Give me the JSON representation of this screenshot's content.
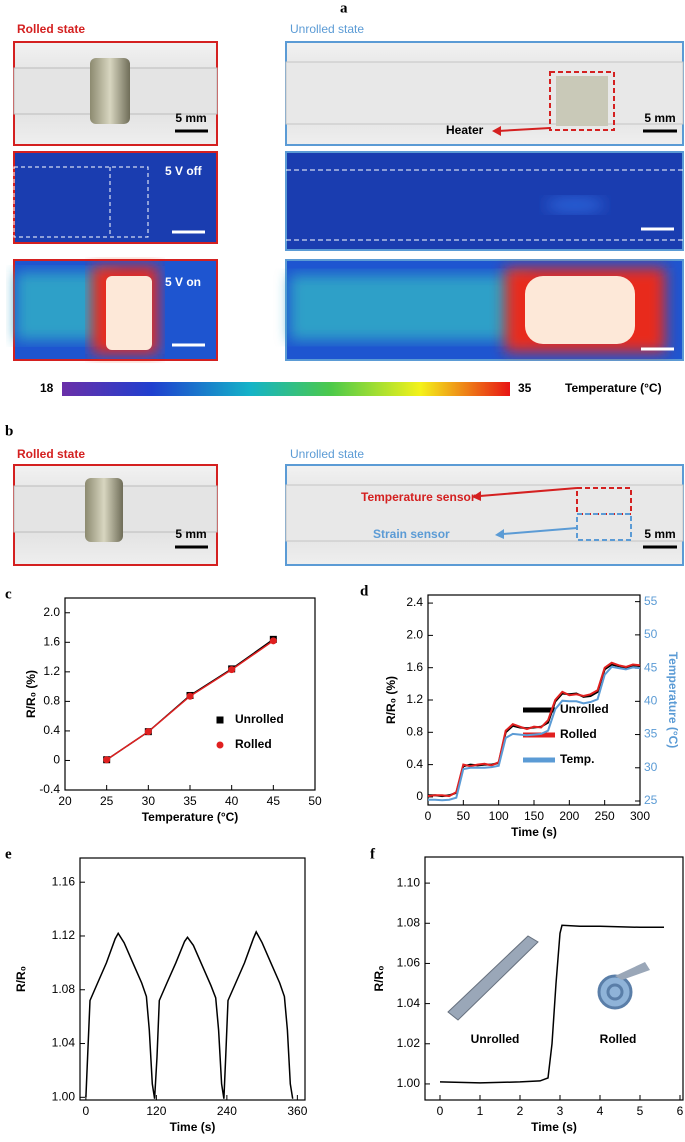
{
  "figure": {
    "panel_labels": [
      "a",
      "b"
    ],
    "a": {
      "rolled": "Rolled state",
      "unrolled": "Unrolled state",
      "scale": "5 mm",
      "heater": "Heater",
      "off": "5 V off",
      "on": "5 V on",
      "colorbar": {
        "min": 18,
        "max": 35,
        "label": "Temperature (°C)"
      }
    },
    "b": {
      "rolled": "Rolled state",
      "unrolled": "Unrolled state",
      "scale": "5 mm",
      "temp_sensor": "Temperature sensor",
      "strain_sensor": "Strain sensor"
    }
  },
  "chart_data": [
    {
      "type": "scatter",
      "label": "c",
      "xlabel": "Temperature (°C)",
      "ylabel": "R/R₀ (%)",
      "x": [
        25,
        30,
        35,
        40,
        45
      ],
      "series": [
        {
          "name": "Unrolled",
          "color": "#000000",
          "marker": "square",
          "values": [
            0.01,
            0.39,
            0.88,
            1.24,
            1.64
          ]
        },
        {
          "name": "Rolled",
          "color": "#e02020",
          "marker": "circle",
          "values": [
            0.01,
            0.39,
            0.87,
            1.23,
            1.62
          ]
        }
      ],
      "xlim": [
        20,
        50
      ],
      "ylim": [
        -0.4,
        2.2
      ],
      "xticks": [
        20,
        25,
        30,
        35,
        40,
        45,
        50
      ],
      "yticks": [
        -0.4,
        0,
        0.4,
        0.8,
        1.2,
        1.6,
        {
          "value": 2,
          "label": "2.0"
        }
      ],
      "legend": "lower right"
    },
    {
      "type": "line",
      "label": "d",
      "xlabel": "Time (s)",
      "ylabel": "R/R₀ (%)",
      "y2label": "Temperature (°C)",
      "x": [
        0,
        10,
        20,
        30,
        40,
        50,
        60,
        70,
        80,
        90,
        100,
        110,
        120,
        130,
        140,
        150,
        160,
        170,
        180,
        190,
        200,
        210,
        220,
        230,
        240,
        250,
        260,
        270,
        280,
        290,
        300
      ],
      "series": [
        {
          "name": "Unrolled",
          "color": "#000000",
          "values": [
            0.02,
            0.02,
            0.01,
            0.02,
            0.05,
            0.38,
            0.4,
            0.39,
            0.4,
            0.4,
            0.42,
            0.8,
            0.88,
            0.86,
            0.85,
            0.86,
            0.87,
            0.92,
            1.18,
            1.28,
            1.27,
            1.28,
            1.24,
            1.25,
            1.3,
            1.58,
            1.64,
            1.62,
            1.6,
            1.63,
            1.62
          ]
        },
        {
          "name": "Rolled",
          "color": "#e02020",
          "values": [
            0.01,
            0.02,
            0.02,
            0.01,
            0.06,
            0.4,
            0.38,
            0.4,
            0.41,
            0.39,
            0.43,
            0.82,
            0.9,
            0.87,
            0.84,
            0.87,
            0.86,
            0.95,
            1.2,
            1.3,
            1.26,
            1.27,
            1.25,
            1.27,
            1.32,
            1.6,
            1.66,
            1.63,
            1.61,
            1.64,
            1.63
          ]
        },
        {
          "name": "Temp.",
          "color": "#5b9bd5",
          "axis": "y2",
          "values": [
            25.2,
            25.2,
            25.1,
            25.2,
            25.5,
            29.8,
            30,
            30,
            30,
            30.1,
            30.3,
            34.5,
            35.1,
            35,
            34.9,
            35,
            35.1,
            35.6,
            38.8,
            40.1,
            40,
            40,
            39.7,
            39.9,
            40.3,
            44,
            45.2,
            45,
            44.8,
            45.1,
            45
          ]
        }
      ],
      "xlim": [
        0,
        300
      ],
      "ylim": [
        -0.1,
        2.5
      ],
      "y2lim": [
        24.4,
        56
      ],
      "xticks": [
        0,
        50,
        100,
        150,
        200,
        250,
        300
      ],
      "yticks": [
        0,
        0.4,
        0.8,
        1.2,
        1.6,
        {
          "value": 2,
          "label": "2.0"
        },
        2.4
      ],
      "y2ticks": [
        25,
        30,
        35,
        40,
        45,
        50,
        55
      ],
      "legend": "lower right"
    },
    {
      "type": "line",
      "label": "e",
      "xlabel": "Time (s)",
      "ylabel": "R/R₀",
      "x": [
        0,
        3,
        7,
        20,
        35,
        50,
        55,
        65,
        80,
        95,
        103,
        108,
        113,
        117,
        121,
        125,
        138,
        153,
        168,
        173,
        183,
        198,
        213,
        221,
        226,
        231,
        235,
        238,
        242,
        255,
        270,
        285,
        290,
        300,
        315,
        330,
        338,
        343,
        348,
        352
      ],
      "series": [
        {
          "color": "#000000",
          "values": [
            1,
            1.03,
            1.072,
            1.085,
            1.1,
            1.118,
            1.122,
            1.115,
            1.1,
            1.085,
            1.075,
            1.05,
            1.01,
            0.999,
            1.03,
            1.072,
            1.085,
            1.1,
            1.116,
            1.119,
            1.113,
            1.098,
            1.083,
            1.074,
            1.05,
            1.01,
            0.999,
            1.03,
            1.072,
            1.085,
            1.1,
            1.118,
            1.123,
            1.115,
            1.1,
            1.085,
            1.075,
            1.05,
            1.01,
            0.999
          ]
        }
      ],
      "xlim": [
        -10,
        373
      ],
      "ylim": [
        0.998,
        1.178
      ],
      "xticks": [
        0,
        120,
        240,
        360
      ],
      "yticks": [
        {
          "value": 1,
          "label": "1.00"
        },
        1.04,
        1.08,
        1.12,
        1.16
      ]
    },
    {
      "type": "line",
      "label": "f",
      "xlabel": "Time (s)",
      "ylabel": "R/R₀",
      "annotations": [
        "Unrolled",
        "Rolled"
      ],
      "x": [
        0,
        1,
        2,
        2.5,
        2.7,
        2.8,
        2.9,
        3,
        3.05,
        3.5,
        4,
        5,
        5.6
      ],
      "series": [
        {
          "color": "#000000",
          "values": [
            1.001,
            1.0005,
            1.001,
            1.0015,
            1.003,
            1.02,
            1.05,
            1.075,
            1.079,
            1.0785,
            1.0785,
            1.078,
            1.078
          ]
        }
      ],
      "xlim": [
        -0.375,
        6.075
      ],
      "ylim": [
        0.992,
        1.113
      ],
      "xticks": [
        0,
        1,
        2,
        3,
        4,
        5,
        6
      ],
      "yticks": [
        {
          "value": 1,
          "label": "1.00"
        },
        1.02,
        1.04,
        1.06,
        1.08,
        {
          "value": 1.1,
          "label": "1.10"
        }
      ]
    }
  ]
}
